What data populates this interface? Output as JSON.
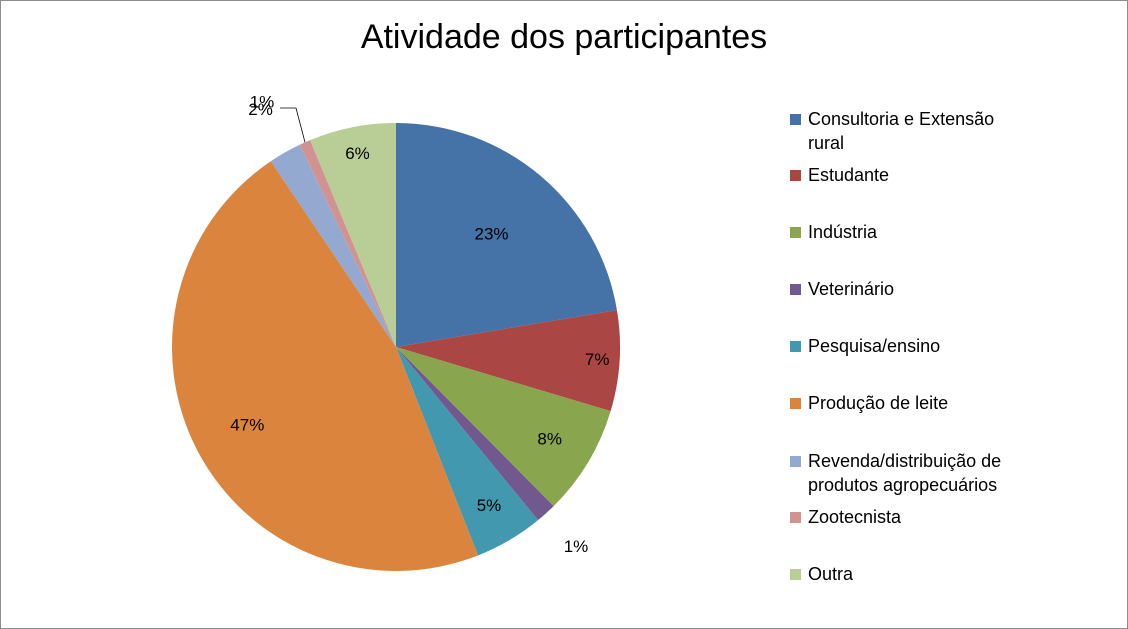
{
  "chart_data": {
    "type": "pie",
    "title": "Atividade dos participantes",
    "categories": [
      "Consultoria e Extensão rural",
      "Estudante",
      "Indústria",
      "Veterinário",
      "Pesquisa/ensino",
      "Produção de leite",
      "Revenda/distribuição de produtos agropecuários",
      "Zootecnista",
      "Outra"
    ],
    "values": [
      22.5,
      7.3,
      8.0,
      1.5,
      5.0,
      46.8,
      2.4,
      0.8,
      6.3
    ],
    "data_labels": [
      "23%",
      "7%",
      "8%",
      "1%",
      "5%",
      "47%",
      "2%",
      "1%",
      "6%"
    ],
    "colors": [
      "#4572A7",
      "#AA4643",
      "#89A54E",
      "#71588F",
      "#4198AF",
      "#DB843D",
      "#93A9CF",
      "#D19392",
      "#B9CD96"
    ],
    "legend_position": "right",
    "start_angle": "12 o'clock, clockwise"
  }
}
